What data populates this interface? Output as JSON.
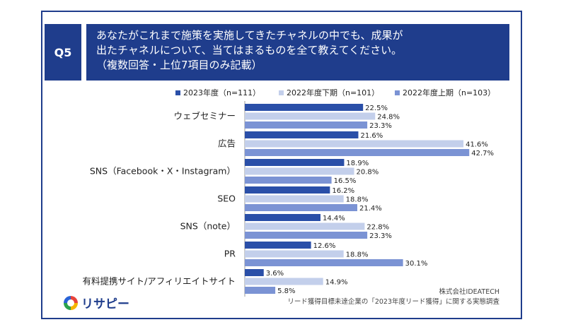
{
  "question": {
    "number": "Q5",
    "lines": [
      "あなたがこれまで施策を実施してきたチャネルの中でも、成果が",
      "出たチャネルについて、当てはまるものを全て教えてください。",
      "（複数回答・上位7項目のみ記載）"
    ]
  },
  "colors": {
    "header_bg": "#1f3d8c",
    "frame": "#1f3d8c"
  },
  "chart_data": {
    "type": "bar",
    "orientation": "horizontal",
    "categories": [
      "ウェブセミナー",
      "広告",
      "SNS（Facebook・X・Instagram）",
      "SEO",
      "SNS（note）",
      "PR",
      "有料提携サイト/アフィリエイトサイト"
    ],
    "series": [
      {
        "name": "2023年度（n=111）",
        "color": "#2a4fa8",
        "values": [
          22.5,
          21.6,
          18.9,
          16.2,
          14.4,
          12.6,
          3.6
        ],
        "labels": [
          "22.5%",
          "21.6%",
          "18.9%",
          "16.2%",
          "14.4%",
          "12.6%",
          "3.6%"
        ]
      },
      {
        "name": "2022年度下期（n=101）",
        "color": "#c3cfeb",
        "values": [
          24.8,
          41.6,
          20.8,
          18.8,
          22.8,
          18.8,
          14.9
        ],
        "labels": [
          "24.8%",
          "41.6%",
          "20.8%",
          "18.8%",
          "22.8%",
          "18.8%",
          "14.9%"
        ]
      },
      {
        "name": "2022年度上期（n=103）",
        "color": "#7b93d4",
        "values": [
          23.3,
          42.7,
          16.5,
          21.4,
          23.3,
          30.1,
          5.8
        ],
        "labels": [
          "23.3%",
          "42.7%",
          "16.5%",
          "21.4%",
          "23.3%",
          "30.1%",
          "5.8%"
        ]
      }
    ],
    "legend_position": "top",
    "grid": false
  },
  "footer": {
    "company": "株式会社IDEATECH",
    "source": "リード獲得目標未達企業の「2023年度リード獲得」に関する実態調査"
  },
  "logo": {
    "text": "リサピー"
  }
}
